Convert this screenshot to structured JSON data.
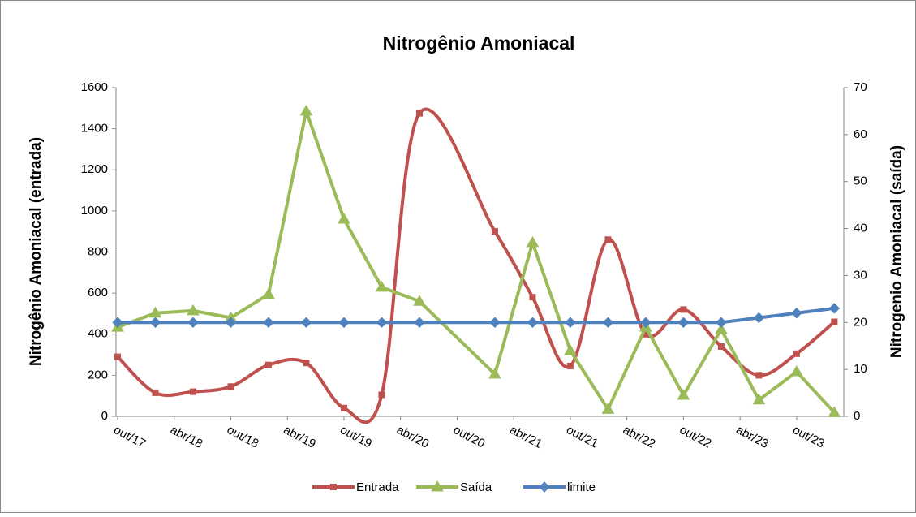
{
  "chart_data": {
    "type": "line",
    "title": "Nitrogênio Amoniacal",
    "y_label": "Nitrogênio Amoniacal (entrada)",
    "y2_label": "Nitrogenio Amoniacal (saída)",
    "x": [
      "2017-10",
      "2018-02",
      "2018-06",
      "2018-10",
      "2019-02",
      "2019-06",
      "2019-10",
      "2020-02",
      "2020-06",
      "2021-02",
      "2021-06",
      "2021-10",
      "2022-02",
      "2022-06",
      "2022-10",
      "2023-02",
      "2023-06",
      "2023-10",
      "2024-02"
    ],
    "xlim": [
      "2017-10",
      "2024-03"
    ],
    "xticks": [
      {
        "value": "2017-10",
        "label": "out/17"
      },
      {
        "value": "2018-04",
        "label": "abr/18"
      },
      {
        "value": "2018-10",
        "label": "out/18"
      },
      {
        "value": "2019-04",
        "label": "abr/19"
      },
      {
        "value": "2019-10",
        "label": "out/19"
      },
      {
        "value": "2020-04",
        "label": "abr/20"
      },
      {
        "value": "2020-10",
        "label": "out/20"
      },
      {
        "value": "2021-04",
        "label": "abr/21"
      },
      {
        "value": "2021-10",
        "label": "out/21"
      },
      {
        "value": "2022-04",
        "label": "abr/22"
      },
      {
        "value": "2022-10",
        "label": "out/22"
      },
      {
        "value": "2023-04",
        "label": "abr/23"
      },
      {
        "value": "2023-10",
        "label": "out/23"
      }
    ],
    "ylim": [
      0,
      1600
    ],
    "yticks": [
      0,
      200,
      400,
      600,
      800,
      1000,
      1200,
      1400,
      1600
    ],
    "y2lim": [
      0,
      70
    ],
    "y2ticks": [
      0,
      10,
      20,
      30,
      40,
      50,
      60,
      70
    ],
    "legend": "bottom",
    "series": [
      {
        "name": "Entrada",
        "color": "#c0504d",
        "marker": "square",
        "smooth": true,
        "values": [
          290,
          115,
          120,
          145,
          250,
          260,
          40,
          105,
          1475,
          900,
          580,
          245,
          860,
          400,
          520,
          340,
          200,
          305,
          460
        ]
      },
      {
        "name": "Saída",
        "color": "#9bbb59",
        "marker": "triangle",
        "axis": "y2",
        "values": [
          19,
          22,
          22.5,
          21,
          26,
          65,
          42,
          27.5,
          24.5,
          9,
          37,
          14,
          1.5,
          19,
          4.5,
          18.5,
          3.5,
          9.5,
          0.8
        ]
      },
      {
        "name": "limite",
        "color": "#4f81bd",
        "marker": "diamond",
        "axis": "y2",
        "values": [
          20,
          20,
          20,
          20,
          20,
          20,
          20,
          20,
          20,
          20,
          20,
          20,
          20,
          20,
          20,
          20,
          21,
          22,
          23
        ]
      }
    ]
  }
}
